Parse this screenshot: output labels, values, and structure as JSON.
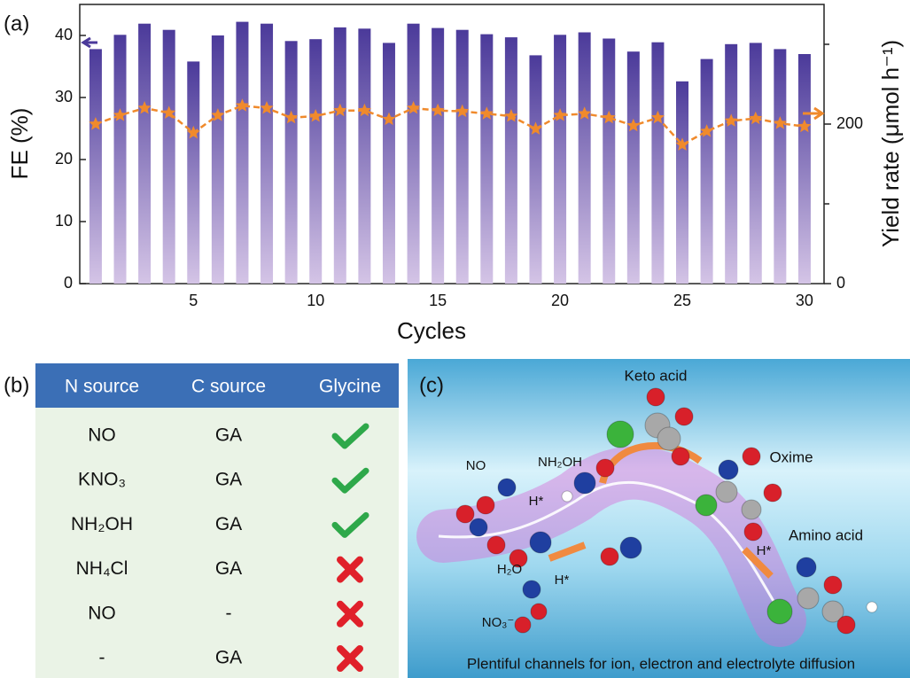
{
  "chart_data": {
    "type": "bar",
    "panel_label": "(a)",
    "xlabel": "Cycles",
    "ylabel": "FE (%)",
    "y2label": "Yield rate (μmol h⁻¹)",
    "x": [
      1,
      2,
      3,
      4,
      5,
      6,
      7,
      8,
      9,
      10,
      11,
      12,
      13,
      14,
      15,
      16,
      17,
      18,
      19,
      20,
      21,
      22,
      23,
      24,
      25,
      26,
      27,
      28,
      29,
      30
    ],
    "series": [
      {
        "type": "bar",
        "color": "#4b3a9a",
        "values": [
          37.8,
          40.1,
          41.9,
          40.9,
          35.8,
          40.0,
          42.2,
          41.9,
          39.1,
          39.4,
          41.3,
          41.1,
          38.8,
          41.9,
          41.2,
          40.9,
          40.2,
          39.7,
          36.8,
          40.1,
          40.5,
          39.5,
          37.4,
          38.9,
          32.6,
          36.2,
          38.6,
          38.8,
          37.8,
          37.0
        ]
      },
      {
        "type": "line",
        "axis": "y2",
        "color": "#f08a2c",
        "values": [
          200,
          211,
          220,
          214,
          189,
          211,
          223,
          220,
          208,
          210,
          217,
          217,
          206,
          220,
          217,
          216,
          213,
          210,
          194,
          211,
          213,
          208,
          198,
          208,
          174,
          191,
          204,
          207,
          201,
          197
        ]
      }
    ],
    "xlim": [
      0.35,
      30.8
    ],
    "xticks": [
      5,
      10,
      15,
      20,
      25,
      30
    ],
    "ylim": [
      0,
      45
    ],
    "yticks": [
      0,
      10,
      20,
      30,
      40
    ],
    "y2lim": [
      0,
      350
    ],
    "y2ticks": [
      0,
      200
    ],
    "y2minor_ticks": [
      100,
      300
    ]
  },
  "table": {
    "panel_label": "(b)",
    "header": [
      "N source",
      "C source",
      "Glycine"
    ],
    "rows": [
      [
        "NO",
        "GA",
        true
      ],
      [
        "KNO₃",
        "GA",
        true
      ],
      [
        "NH₂OH",
        "GA",
        true
      ],
      [
        "NH₄Cl",
        "GA",
        false
      ],
      [
        "NO",
        "-",
        false
      ],
      [
        "-",
        "GA",
        false
      ]
    ]
  },
  "illustration": {
    "panel_label": "(c)",
    "labels": [
      "Keto acid",
      "NO",
      "NH₂OH",
      "H*",
      "Oxime",
      "H₂O",
      "H*",
      "H*",
      "Amino acid",
      "NO₃⁻"
    ],
    "caption": "Plentiful channels for ion, electron and electrolyte diffusion"
  }
}
